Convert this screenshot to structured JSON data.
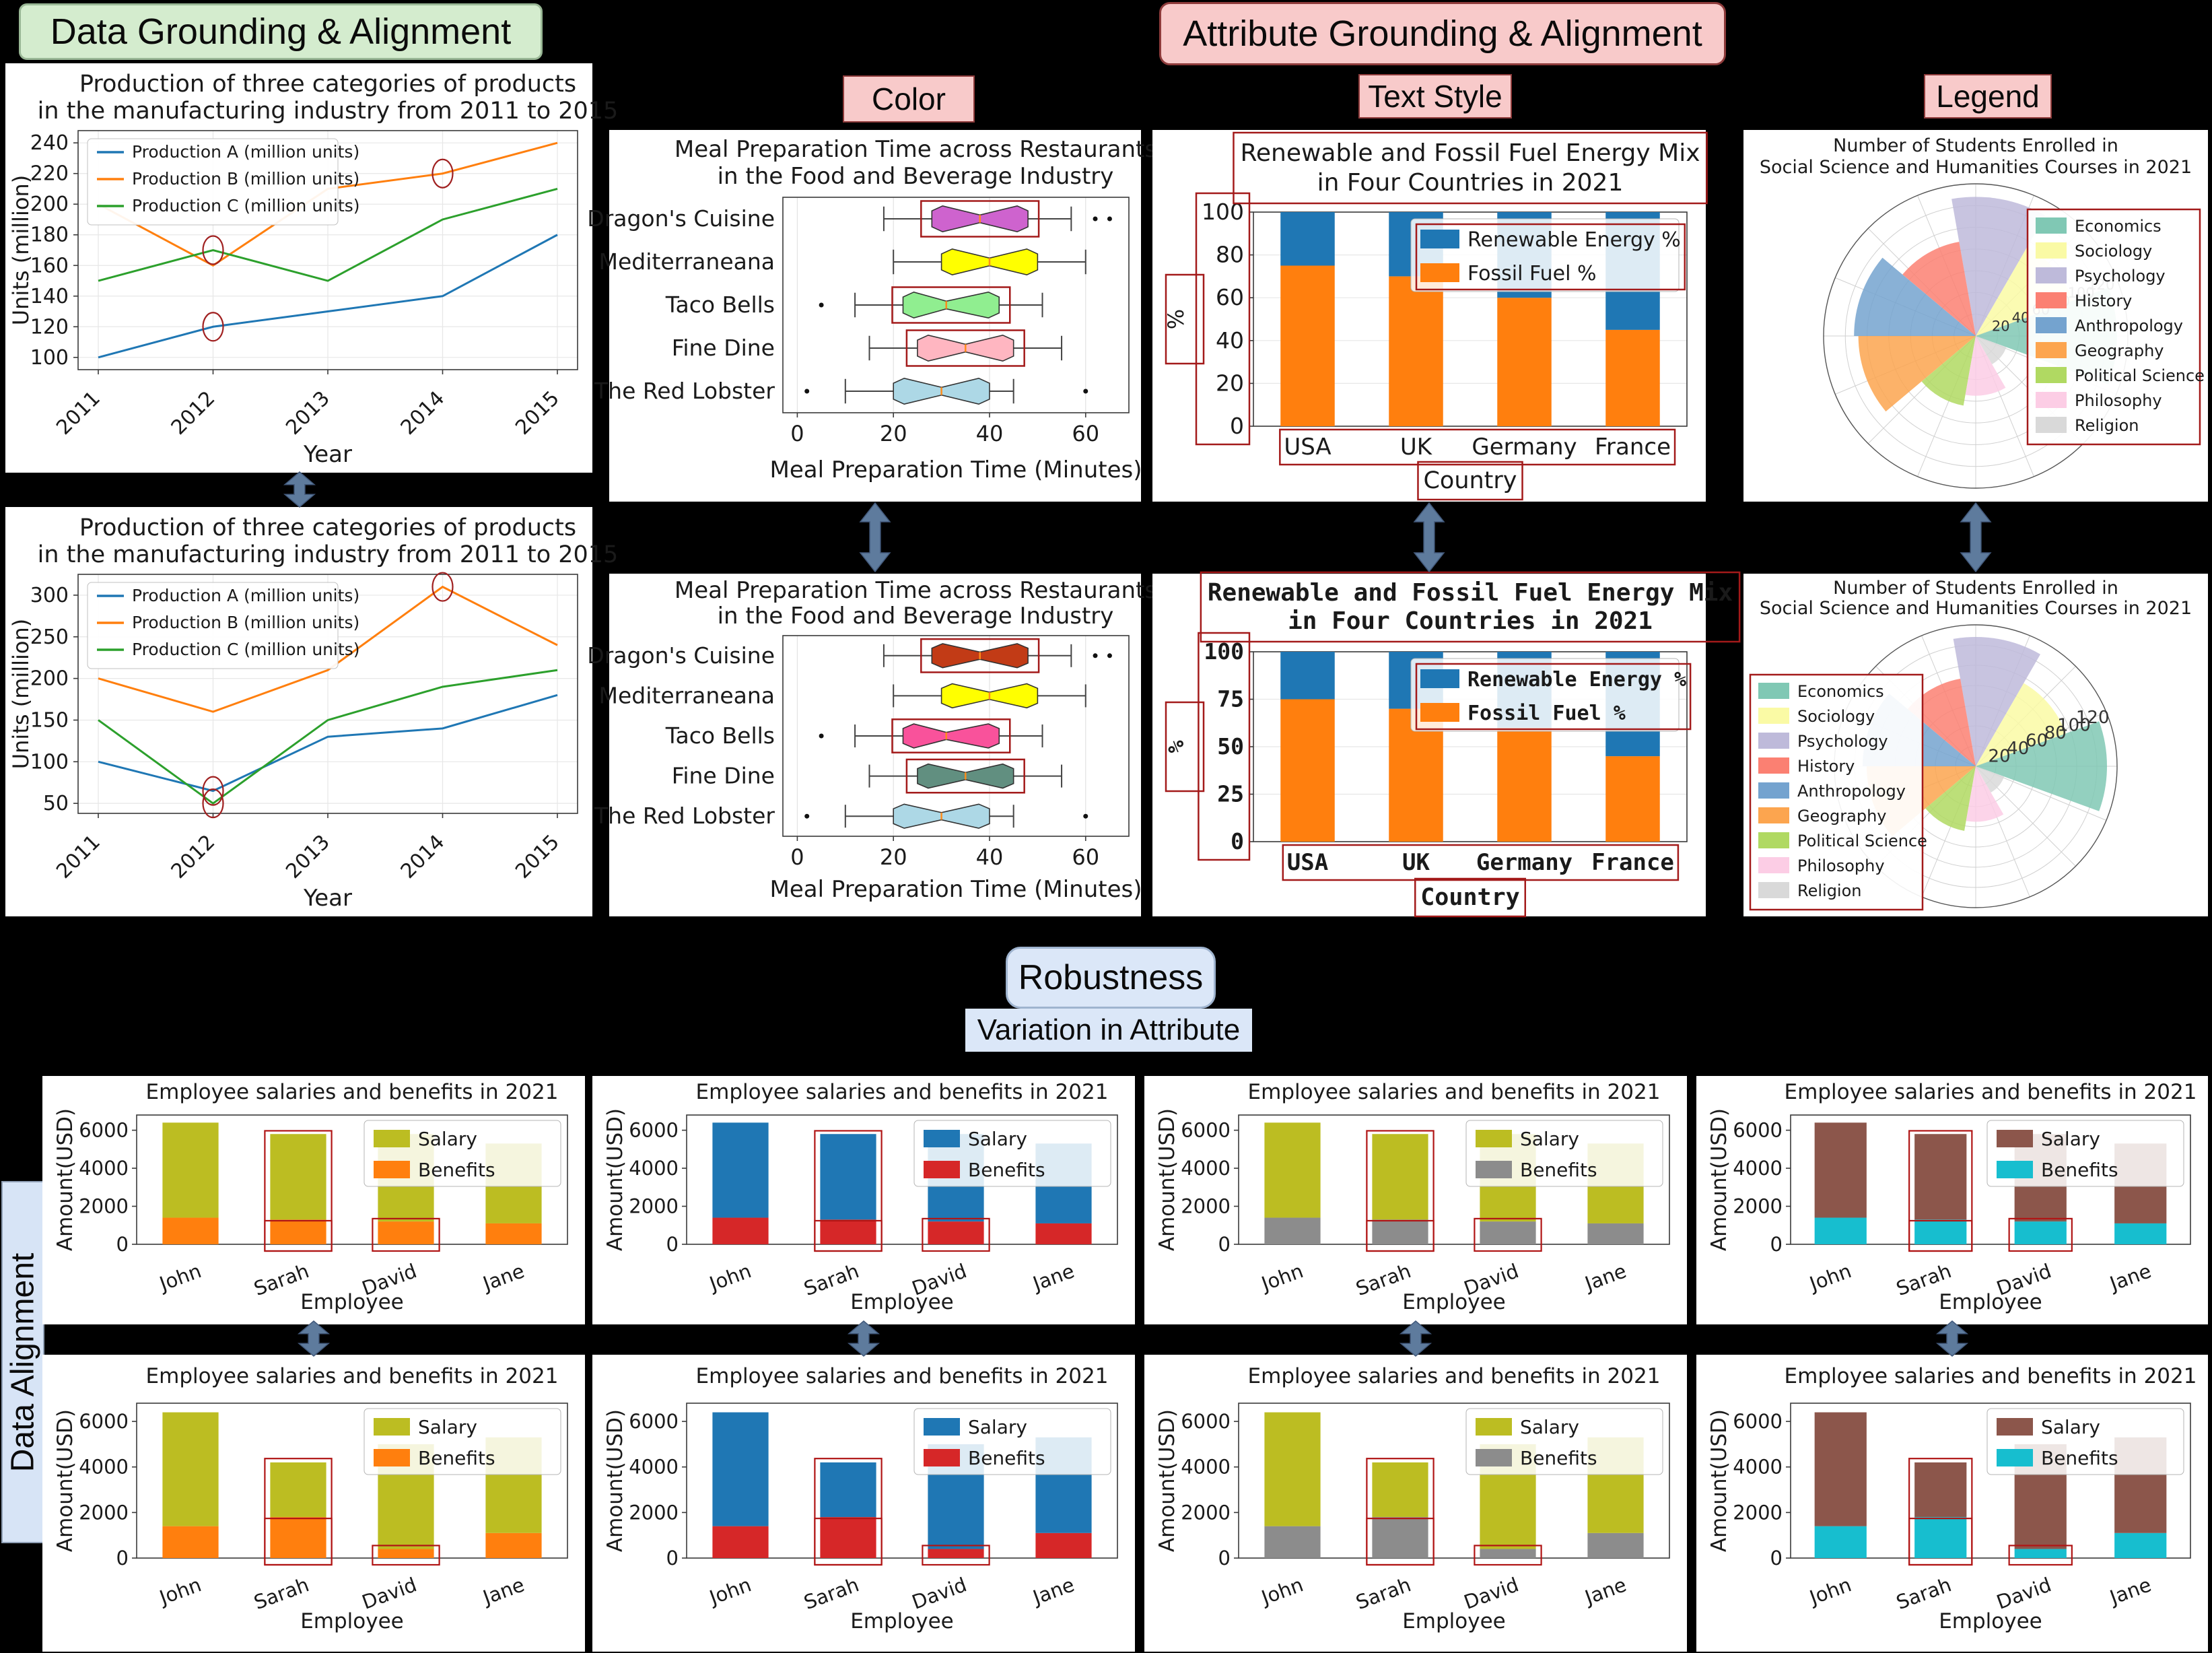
{
  "headers": {
    "data_grounding": "Data Grounding & Alignment",
    "attribute_grounding": "Attribute Grounding & Alignment",
    "color": "Color",
    "text_style": "Text Style",
    "legend": "Legend",
    "robustness": "Robustness",
    "variation_in_attribute": "Variation in Attribute",
    "data_alignment": "Data Alignment"
  },
  "ui_colors": {
    "green_label_bg": "#d4ecce",
    "pink_label_bg": "#f8caca",
    "blue_label_bg": "#dbe7f8",
    "arrow_fill": "#5e7b9d",
    "annotation_red": "#a31a1a"
  },
  "chart_data": [
    {
      "id": "production_top",
      "type": "line",
      "title": [
        "Production of three categories of products",
        "in the manufacturing industry from 2011 to 2015"
      ],
      "xlabel": "Year",
      "ylabel": "Units (million)",
      "x": [
        "2011",
        "2012",
        "2013",
        "2014",
        "2015"
      ],
      "series": [
        {
          "name": "Production A (million units)",
          "color": "#1f77b4",
          "values": [
            100,
            120,
            130,
            140,
            180
          ]
        },
        {
          "name": "Production B (million units)",
          "color": "#ff7f0e",
          "values": [
            200,
            160,
            210,
            220,
            240
          ]
        },
        {
          "name": "Production C (million units)",
          "color": "#2ca02c",
          "values": [
            150,
            170,
            150,
            190,
            210
          ]
        }
      ],
      "yticks": [
        100,
        120,
        140,
        160,
        180,
        200,
        220,
        240
      ],
      "ylim": [
        92,
        248
      ],
      "circled": [
        {
          "series": 0,
          "index": 1
        },
        {
          "series": 2,
          "index": 1
        },
        {
          "series": 1,
          "index": 3
        }
      ]
    },
    {
      "id": "production_bottom",
      "type": "line",
      "title": [
        "Production of three categories of products",
        "in the manufacturing industry from 2011 to 2015"
      ],
      "xlabel": "Year",
      "ylabel": "Units (million)",
      "x": [
        "2011",
        "2012",
        "2013",
        "2014",
        "2015"
      ],
      "series": [
        {
          "name": "Production A (million units)",
          "color": "#1f77b4",
          "values": [
            100,
            65,
            130,
            140,
            180
          ]
        },
        {
          "name": "Production B (million units)",
          "color": "#ff7f0e",
          "values": [
            200,
            160,
            210,
            310,
            240
          ]
        },
        {
          "name": "Production C (million units)",
          "color": "#2ca02c",
          "values": [
            150,
            50,
            150,
            190,
            210
          ]
        }
      ],
      "yticks": [
        50,
        100,
        150,
        200,
        250,
        300
      ],
      "ylim": [
        38,
        325
      ],
      "circled": [
        {
          "series": 0,
          "index": 1
        },
        {
          "series": 2,
          "index": 1
        },
        {
          "series": 1,
          "index": 3
        }
      ]
    },
    {
      "id": "meal_top",
      "type": "boxplot",
      "title": [
        "Meal Preparation Time across Restaurants",
        "in the Food and Beverage Industry"
      ],
      "xlabel": "Meal Preparation Time (Minutes)",
      "xticks": [
        0,
        20,
        40,
        60
      ],
      "xlim": [
        -3,
        69
      ],
      "rows": [
        {
          "label": "Dragon's Cuisine",
          "lo": 18,
          "q1": 28,
          "med": 38,
          "q3": 48,
          "hi": 57,
          "outliers": [
            62,
            65
          ],
          "color": "#ce63ce",
          "boxed": true
        },
        {
          "label": "Mediterraneana",
          "lo": 20,
          "q1": 30,
          "med": 40,
          "q3": 50,
          "hi": 60,
          "outliers": [],
          "color": "#ffff00",
          "boxed": false
        },
        {
          "label": "Taco Bells",
          "lo": 12,
          "q1": 22,
          "med": 31,
          "q3": 42,
          "hi": 51,
          "outliers": [
            5
          ],
          "color": "#90ee90",
          "boxed": true
        },
        {
          "label": "Fine Dine",
          "lo": 15,
          "q1": 25,
          "med": 35,
          "q3": 45,
          "hi": 55,
          "outliers": [],
          "color": "#ffb6c1",
          "boxed": true
        },
        {
          "label": "The Red Lobster",
          "lo": 10,
          "q1": 20,
          "med": 30,
          "q3": 40,
          "hi": 45,
          "outliers": [
            2,
            60
          ],
          "color": "#add8e6",
          "boxed": false
        }
      ]
    },
    {
      "id": "meal_bottom",
      "type": "boxplot",
      "title": [
        "Meal Preparation Time across Restaurants",
        "in the Food and Beverage Industry"
      ],
      "xlabel": "Meal Preparation Time (Minutes)",
      "xticks": [
        0,
        20,
        40,
        60
      ],
      "xlim": [
        -3,
        69
      ],
      "rows": [
        {
          "label": "Dragon's Cuisine",
          "lo": 18,
          "q1": 28,
          "med": 38,
          "q3": 48,
          "hi": 57,
          "outliers": [
            62,
            65
          ],
          "color": "#c23b16",
          "boxed": true
        },
        {
          "label": "Mediterraneana",
          "lo": 20,
          "q1": 30,
          "med": 40,
          "q3": 50,
          "hi": 60,
          "outliers": [],
          "color": "#ffff00",
          "boxed": false
        },
        {
          "label": "Taco Bells",
          "lo": 12,
          "q1": 22,
          "med": 31,
          "q3": 42,
          "hi": 51,
          "outliers": [
            5
          ],
          "color": "#f9529b",
          "boxed": true
        },
        {
          "label": "Fine Dine",
          "lo": 15,
          "q1": 25,
          "med": 35,
          "q3": 45,
          "hi": 55,
          "outliers": [],
          "color": "#618f80",
          "boxed": true
        },
        {
          "label": "The Red Lobster",
          "lo": 10,
          "q1": 20,
          "med": 30,
          "q3": 40,
          "hi": 45,
          "outliers": [
            2,
            60
          ],
          "color": "#add8e6",
          "boxed": false
        }
      ]
    },
    {
      "id": "energy_top",
      "type": "stacked_bar",
      "mono": false,
      "annotated": true,
      "title": [
        "Renewable and Fossil Fuel Energy Mix",
        "in Four Countries in 2021"
      ],
      "xlabel": "Country",
      "ylabel": "%",
      "categories": [
        "USA",
        "UK",
        "Germany",
        "France"
      ],
      "series": [
        {
          "name": "Fossil Fuel %",
          "color": "#ff7f0e",
          "values": [
            75,
            70,
            60,
            45
          ]
        },
        {
          "name": "Renewable Energy %",
          "color": "#1f77b4",
          "values": [
            25,
            30,
            40,
            55
          ]
        }
      ],
      "legend_order": [
        "Renewable Energy %",
        "Fossil Fuel %"
      ],
      "yticks": [
        0,
        20,
        40,
        60,
        80,
        100
      ]
    },
    {
      "id": "energy_bottom",
      "type": "stacked_bar",
      "mono": true,
      "annotated": true,
      "title": [
        "Renewable and Fossil Fuel Energy Mix",
        "in Four Countries in 2021"
      ],
      "xlabel": "Country",
      "ylabel": "%",
      "categories": [
        "USA",
        "UK",
        "Germany",
        "France"
      ],
      "series": [
        {
          "name": "Fossil Fuel %",
          "color": "#ff7f0e",
          "values": [
            75,
            70,
            60,
            45
          ]
        },
        {
          "name": "Renewable Energy %",
          "color": "#1f77b4",
          "values": [
            25,
            30,
            40,
            55
          ]
        }
      ],
      "legend_order": [
        "Renewable Energy %",
        "Fossil Fuel %"
      ],
      "yticks": [
        0,
        25,
        50,
        75,
        100
      ]
    },
    {
      "id": "students_top",
      "type": "rose",
      "legend_side": "right",
      "title": [
        "Number of Students Enrolled in",
        "Social Science and Humanities Courses in 2021"
      ],
      "categories": [
        "Economics",
        "Sociology",
        "Psychology",
        "History",
        "Anthropology",
        "Geography",
        "Political Science",
        "Philosophy",
        "Religion"
      ],
      "values": [
        130,
        95,
        128,
        88,
        112,
        108,
        65,
        55,
        30
      ],
      "colors": [
        "#80c8b4",
        "#fafaa5",
        "#bebada",
        "#fb8072",
        "#74a3cf",
        "#fca54f",
        "#b0d962",
        "#fccde5",
        "#d9d9d9"
      ],
      "rticks": [
        20,
        40,
        60,
        80,
        100,
        120
      ],
      "rmax": 140
    },
    {
      "id": "students_bottom",
      "type": "rose",
      "legend_side": "left",
      "title": [
        "Number of Students Enrolled in",
        "Social Science and Humanities Courses in 2021"
      ],
      "categories": [
        "Economics",
        "Sociology",
        "Psychology",
        "History",
        "Anthropology",
        "Geography",
        "Political Science",
        "Philosophy",
        "Religion"
      ],
      "values": [
        130,
        95,
        128,
        88,
        112,
        108,
        65,
        55,
        30
      ],
      "colors": [
        "#80c8b4",
        "#fafaa5",
        "#bebada",
        "#fb8072",
        "#74a3cf",
        "#fca54f",
        "#b0d962",
        "#fccde5",
        "#d9d9d9"
      ],
      "rticks": [
        20,
        40,
        60,
        80,
        100,
        120
      ],
      "rmax": 140
    },
    {
      "id": "emp_top_1",
      "type": "employee",
      "title": "Employee salaries and benefits in 2021",
      "ylabel": "Amount(USD)",
      "xlabel": "Employee",
      "employees": [
        "John",
        "Sarah",
        "David",
        "Jane"
      ],
      "benefits": [
        1400,
        1300,
        1200,
        1100
      ],
      "salary": [
        5000,
        4500,
        4600,
        4200
      ],
      "yticks": [
        0,
        2000,
        4000,
        6000
      ],
      "colors": {
        "salary": "#bcbd22",
        "benefits": "#ff7f0e"
      },
      "legend": [
        "Salary",
        "Benefits"
      ],
      "annotations": [
        {
          "employee": "Sarah",
          "kind": "full"
        },
        {
          "employee": "Sarah",
          "kind": "benefits_line"
        },
        {
          "employee": "David",
          "kind": "benefits"
        }
      ]
    },
    {
      "id": "emp_top_2",
      "type": "employee",
      "title": "Employee salaries and benefits in 2021",
      "ylabel": "Amount(USD)",
      "xlabel": "Employee",
      "employees": [
        "John",
        "Sarah",
        "David",
        "Jane"
      ],
      "benefits": [
        1400,
        1300,
        1200,
        1100
      ],
      "salary": [
        5000,
        4500,
        4600,
        4200
      ],
      "yticks": [
        0,
        2000,
        4000,
        6000
      ],
      "colors": {
        "salary": "#1f77b4",
        "benefits": "#d62728"
      },
      "legend": [
        "Salary",
        "Benefits"
      ],
      "annotations": [
        {
          "employee": "Sarah",
          "kind": "full"
        },
        {
          "employee": "Sarah",
          "kind": "benefits_line"
        },
        {
          "employee": "David",
          "kind": "benefits"
        }
      ]
    },
    {
      "id": "emp_top_3",
      "type": "employee",
      "title": "Employee salaries and benefits in 2021",
      "ylabel": "Amount(USD)",
      "xlabel": "Employee",
      "employees": [
        "John",
        "Sarah",
        "David",
        "Jane"
      ],
      "benefits": [
        1400,
        1300,
        1200,
        1100
      ],
      "salary": [
        5000,
        4500,
        4600,
        4200
      ],
      "yticks": [
        0,
        2000,
        4000,
        6000
      ],
      "colors": {
        "salary": "#bcbd22",
        "benefits": "#8c8c8c"
      },
      "legend": [
        "Salary",
        "Benefits"
      ],
      "annotations": [
        {
          "employee": "Sarah",
          "kind": "full"
        },
        {
          "employee": "Sarah",
          "kind": "benefits_line"
        },
        {
          "employee": "David",
          "kind": "benefits"
        }
      ]
    },
    {
      "id": "emp_top_4",
      "type": "employee",
      "title": "Employee salaries and benefits in 2021",
      "ylabel": "Amount(USD)",
      "xlabel": "Employee",
      "employees": [
        "John",
        "Sarah",
        "David",
        "Jane"
      ],
      "benefits": [
        1400,
        1300,
        1200,
        1100
      ],
      "salary": [
        5000,
        4500,
        4600,
        4200
      ],
      "yticks": [
        0,
        2000,
        4000,
        6000
      ],
      "colors": {
        "salary": "#8c564b",
        "benefits": "#17becf"
      },
      "legend": [
        "Salary",
        "Benefits"
      ],
      "annotations": [
        {
          "employee": "Sarah",
          "kind": "full"
        },
        {
          "employee": "Sarah",
          "kind": "benefits_line"
        },
        {
          "employee": "David",
          "kind": "benefits"
        }
      ]
    },
    {
      "id": "emp_bot_1",
      "type": "employee",
      "title": "Employee salaries and benefits in 2021",
      "ylabel": "Amount(USD)",
      "xlabel": "Employee",
      "employees": [
        "John",
        "Sarah",
        "David",
        "Jane"
      ],
      "benefits": [
        1400,
        1800,
        400,
        1100
      ],
      "salary": [
        5000,
        2400,
        4600,
        4200
      ],
      "yticks": [
        0,
        2000,
        4000,
        6000
      ],
      "colors": {
        "salary": "#bcbd22",
        "benefits": "#ff7f0e"
      },
      "legend": [
        "Salary",
        "Benefits"
      ],
      "annotations": [
        {
          "employee": "Sarah",
          "kind": "full"
        },
        {
          "employee": "Sarah",
          "kind": "benefits_line"
        },
        {
          "employee": "David",
          "kind": "benefits"
        }
      ]
    },
    {
      "id": "emp_bot_2",
      "type": "employee",
      "title": "Employee salaries and benefits in 2021",
      "ylabel": "Amount(USD)",
      "xlabel": "Employee",
      "employees": [
        "John",
        "Sarah",
        "David",
        "Jane"
      ],
      "benefits": [
        1400,
        1800,
        400,
        1100
      ],
      "salary": [
        5000,
        2400,
        4600,
        4200
      ],
      "yticks": [
        0,
        2000,
        4000,
        6000
      ],
      "colors": {
        "salary": "#1f77b4",
        "benefits": "#d62728"
      },
      "legend": [
        "Salary",
        "Benefits"
      ],
      "annotations": [
        {
          "employee": "Sarah",
          "kind": "full"
        },
        {
          "employee": "Sarah",
          "kind": "benefits_line"
        },
        {
          "employee": "David",
          "kind": "benefits"
        }
      ]
    },
    {
      "id": "emp_bot_3",
      "type": "employee",
      "title": "Employee salaries and benefits in 2021",
      "ylabel": "Amount(USD)",
      "xlabel": "Employee",
      "employees": [
        "John",
        "Sarah",
        "David",
        "Jane"
      ],
      "benefits": [
        1400,
        1800,
        400,
        1100
      ],
      "salary": [
        5000,
        2400,
        4600,
        4200
      ],
      "yticks": [
        0,
        2000,
        4000,
        6000
      ],
      "colors": {
        "salary": "#bcbd22",
        "benefits": "#8c8c8c"
      },
      "legend": [
        "Salary",
        "Benefits"
      ],
      "annotations": [
        {
          "employee": "Sarah",
          "kind": "full"
        },
        {
          "employee": "Sarah",
          "kind": "benefits_line"
        },
        {
          "employee": "David",
          "kind": "benefits"
        }
      ]
    },
    {
      "id": "emp_bot_4",
      "type": "employee",
      "title": "Employee salaries and benefits in 2021",
      "ylabel": "Amount(USD)",
      "xlabel": "Employee",
      "employees": [
        "John",
        "Sarah",
        "David",
        "Jane"
      ],
      "benefits": [
        1400,
        1800,
        400,
        1100
      ],
      "salary": [
        5000,
        2400,
        4600,
        4200
      ],
      "yticks": [
        0,
        2000,
        4000,
        6000
      ],
      "colors": {
        "salary": "#8c564b",
        "benefits": "#17becf"
      },
      "legend": [
        "Salary",
        "Benefits"
      ],
      "annotations": [
        {
          "employee": "Sarah",
          "kind": "full"
        },
        {
          "employee": "Sarah",
          "kind": "benefits_line"
        },
        {
          "employee": "David",
          "kind": "benefits"
        }
      ]
    }
  ]
}
